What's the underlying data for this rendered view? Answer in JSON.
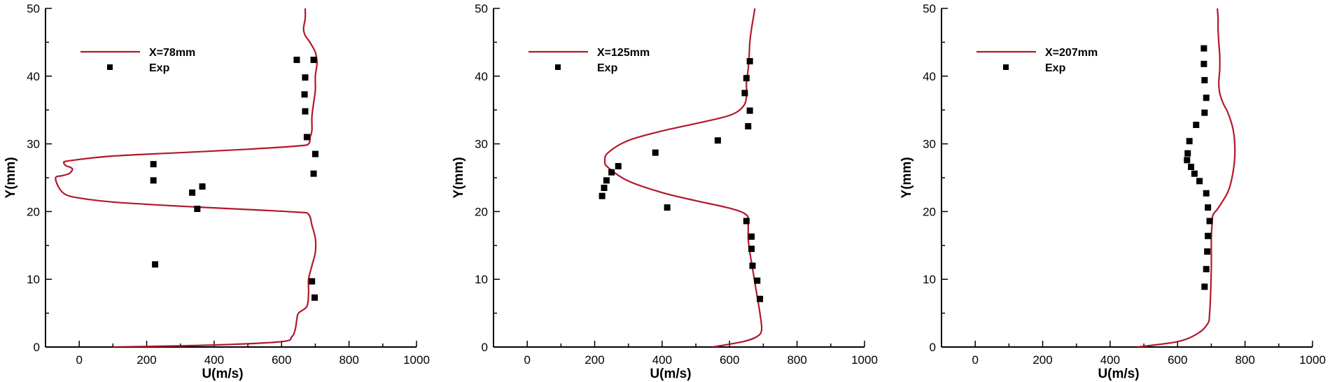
{
  "figure": {
    "line_color": "#b2182b",
    "marker_color": "#000000"
  },
  "chart_data": [
    {
      "type": "line+scatter",
      "title": "",
      "xlabel": "U(m/s)",
      "ylabel": "Y(mm)",
      "xlim": [
        -100,
        1000
      ],
      "ylim": [
        0,
        50
      ],
      "xticks": [
        0,
        200,
        400,
        600,
        800,
        1000
      ],
      "yticks": [
        0,
        10,
        20,
        30,
        40,
        50
      ],
      "legend_placement": "top-left",
      "series": [
        {
          "name": "X=78mm",
          "kind": "line",
          "x": [
            100,
            400,
            600,
            630,
            640,
            645,
            650,
            675,
            680,
            680,
            690,
            700,
            700,
            690,
            680,
            650,
            500,
            300,
            100,
            0,
            -40,
            -60,
            -70,
            -50,
            -30,
            -20,
            -25,
            -40,
            -45,
            -30,
            100,
            300,
            500,
            650,
            680,
            685,
            690,
            690,
            695,
            700,
            700,
            705,
            700,
            690,
            680,
            670,
            665,
            670,
            670
          ],
          "y": [
            0,
            0.3,
            0.8,
            1.5,
            2.5,
            4,
            5,
            6,
            8,
            10,
            12,
            14,
            16,
            18,
            19.6,
            19.9,
            20.3,
            20.8,
            21.4,
            22,
            22.5,
            23.5,
            25,
            25.3,
            25.6,
            26.2,
            26.5,
            26.8,
            27.2,
            27.5,
            28.2,
            28.7,
            29.2,
            29.7,
            30,
            31,
            32,
            34,
            36,
            38,
            40,
            42,
            43.5,
            44.5,
            45.3,
            46,
            47,
            48.5,
            50
          ]
        },
        {
          "name": "Exp",
          "kind": "scatter",
          "x": [
            645,
            670,
            668,
            670,
            675,
            700,
            695,
            220,
            220,
            365,
            335,
            350,
            225,
            690,
            698,
            695
          ],
          "y": [
            42.4,
            39.8,
            37.3,
            34.8,
            31,
            28.5,
            25.6,
            24.6,
            27,
            23.7,
            22.8,
            20.4,
            12.2,
            9.7,
            7.3,
            42.4
          ]
        }
      ]
    },
    {
      "type": "line+scatter",
      "title": "",
      "xlabel": "U(m/s)",
      "ylabel": "Y(mm)",
      "xlim": [
        -100,
        1000
      ],
      "ylim": [
        0,
        50
      ],
      "xticks": [
        0,
        200,
        400,
        600,
        800,
        1000
      ],
      "yticks": [
        0,
        10,
        20,
        30,
        40,
        50
      ],
      "legend_placement": "top-left",
      "series": [
        {
          "name": "X=125mm",
          "kind": "line",
          "x": [
            550,
            640,
            680,
            695,
            690,
            680,
            670,
            660,
            655,
            655,
            650,
            600,
            500,
            400,
            300,
            240,
            230,
            240,
            300,
            400,
            500,
            600,
            640,
            650,
            650,
            655,
            658,
            660,
            665,
            670,
            675
          ],
          "y": [
            0,
            0.8,
            1.5,
            2.5,
            5,
            8,
            11,
            14,
            16,
            18,
            19.5,
            20.5,
            21.6,
            22.8,
            24.5,
            26.5,
            27.5,
            28.7,
            30.5,
            31.9,
            33,
            34.2,
            35.5,
            37,
            39,
            41,
            43,
            45,
            47,
            48.5,
            50
          ]
        },
        {
          "name": "Exp",
          "kind": "scatter",
          "x": [
            660,
            650,
            645,
            660,
            655,
            565,
            380,
            270,
            250,
            235,
            228,
            222,
            415,
            650,
            665,
            665,
            668,
            682,
            690
          ],
          "y": [
            42.2,
            39.7,
            37.5,
            34.9,
            32.6,
            30.5,
            28.7,
            26.7,
            25.8,
            24.6,
            23.5,
            22.3,
            20.6,
            18.6,
            16.3,
            14.5,
            12.0,
            9.8,
            7.1
          ]
        }
      ]
    },
    {
      "type": "line+scatter",
      "title": "",
      "xlabel": "U(m/s)",
      "ylabel": "Y(mm)",
      "xlim": [
        -100,
        1000
      ],
      "ylim": [
        0,
        50
      ],
      "xticks": [
        0,
        200,
        400,
        600,
        800,
        1000
      ],
      "yticks": [
        0,
        10,
        20,
        30,
        40,
        50
      ],
      "legend_placement": "top-left",
      "series": [
        {
          "name": "X=207mm",
          "kind": "line",
          "x": [
            480,
            600,
            660,
            690,
            695,
            698,
            700,
            700,
            702,
            705,
            720,
            750,
            765,
            770,
            765,
            750,
            735,
            725,
            722,
            725,
            725,
            722,
            720,
            720,
            718
          ],
          "y": [
            0,
            0.8,
            2,
            3.5,
            5,
            8,
            12,
            16,
            18,
            19.5,
            20.5,
            23,
            26,
            29,
            32,
            34.5,
            36,
            37.5,
            39,
            41,
            43,
            45,
            47,
            48.5,
            50
          ]
        },
        {
          "name": "Exp",
          "kind": "scatter",
          "x": [
            678,
            678,
            680,
            685,
            680,
            655,
            635,
            630,
            628,
            640,
            650,
            665,
            685,
            690,
            695,
            690,
            688,
            685,
            680
          ],
          "y": [
            44.1,
            41.8,
            39.4,
            36.8,
            34.6,
            32.8,
            30.4,
            28.6,
            27.6,
            26.6,
            25.6,
            24.5,
            22.7,
            20.6,
            18.6,
            16.4,
            14.1,
            11.5,
            8.9
          ]
        }
      ]
    }
  ]
}
